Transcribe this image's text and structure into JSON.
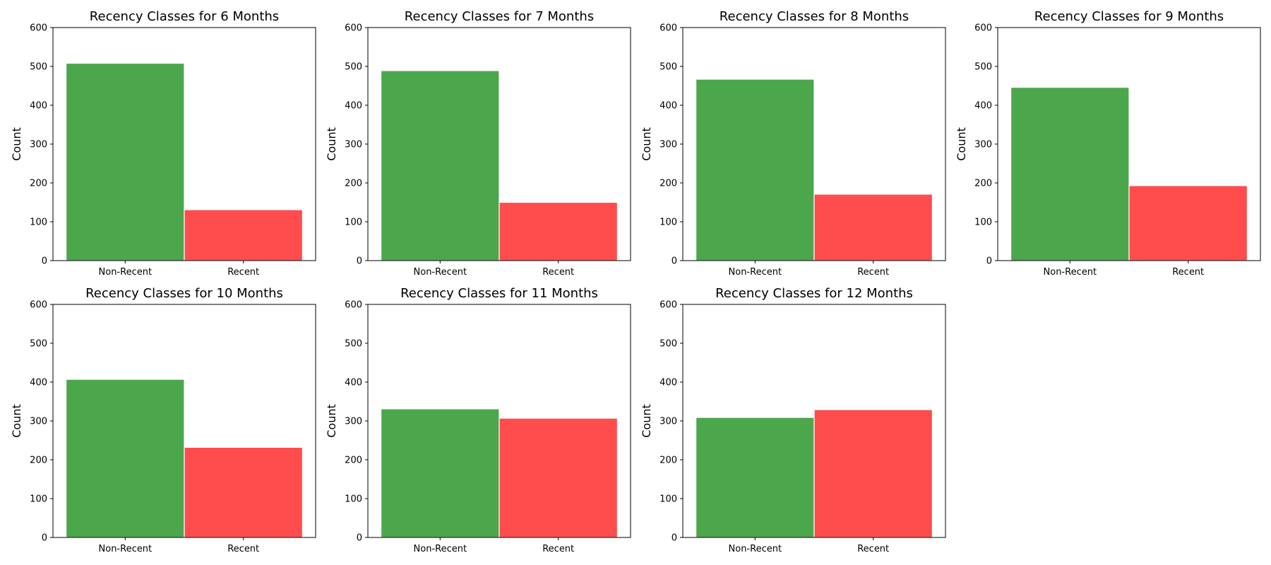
{
  "chart_data": [
    {
      "type": "bar",
      "title": "Recency Classes for 6 Months",
      "categories": [
        "Non-Recent",
        "Recent"
      ],
      "values": [
        508,
        131
      ],
      "colors": [
        "#4ca64c",
        "#ff4c4c"
      ],
      "xlabel": "",
      "ylabel": "Count",
      "ylim": [
        0,
        600
      ],
      "yticks": [
        "0",
        "100",
        "200",
        "300",
        "400",
        "500",
        "600"
      ],
      "grid": false
    },
    {
      "type": "bar",
      "title": "Recency Classes for 7 Months",
      "categories": [
        "Non-Recent",
        "Recent"
      ],
      "values": [
        489,
        150
      ],
      "colors": [
        "#4ca64c",
        "#ff4c4c"
      ],
      "xlabel": "",
      "ylabel": "Count",
      "ylim": [
        0,
        600
      ],
      "yticks": [
        "0",
        "100",
        "200",
        "300",
        "400",
        "500",
        "600"
      ],
      "grid": false
    },
    {
      "type": "bar",
      "title": "Recency Classes for 8 Months",
      "categories": [
        "Non-Recent",
        "Recent"
      ],
      "values": [
        467,
        171
      ],
      "colors": [
        "#4ca64c",
        "#ff4c4c"
      ],
      "xlabel": "",
      "ylabel": "Count",
      "ylim": [
        0,
        600
      ],
      "yticks": [
        "0",
        "100",
        "200",
        "300",
        "400",
        "500",
        "600"
      ],
      "grid": false
    },
    {
      "type": "bar",
      "title": "Recency Classes for 9 Months",
      "categories": [
        "Non-Recent",
        "Recent"
      ],
      "values": [
        446,
        193
      ],
      "colors": [
        "#4ca64c",
        "#ff4c4c"
      ],
      "xlabel": "",
      "ylabel": "Count",
      "ylim": [
        0,
        600
      ],
      "yticks": [
        "0",
        "100",
        "200",
        "300",
        "400",
        "500",
        "600"
      ],
      "grid": false
    },
    {
      "type": "bar",
      "title": "Recency Classes for 10 Months",
      "categories": [
        "Non-Recent",
        "Recent"
      ],
      "values": [
        407,
        232
      ],
      "colors": [
        "#4ca64c",
        "#ff4c4c"
      ],
      "xlabel": "",
      "ylabel": "Count",
      "ylim": [
        0,
        600
      ],
      "yticks": [
        "0",
        "100",
        "200",
        "300",
        "400",
        "500",
        "600"
      ],
      "grid": false
    },
    {
      "type": "bar",
      "title": "Recency Classes for 11 Months",
      "categories": [
        "Non-Recent",
        "Recent"
      ],
      "values": [
        331,
        307
      ],
      "colors": [
        "#4ca64c",
        "#ff4c4c"
      ],
      "xlabel": "",
      "ylabel": "Count",
      "ylim": [
        0,
        600
      ],
      "yticks": [
        "0",
        "100",
        "200",
        "300",
        "400",
        "500",
        "600"
      ],
      "grid": false
    },
    {
      "type": "bar",
      "title": "Recency Classes for 12 Months",
      "categories": [
        "Non-Recent",
        "Recent"
      ],
      "values": [
        309,
        329
      ],
      "colors": [
        "#4ca64c",
        "#ff4c4c"
      ],
      "xlabel": "",
      "ylabel": "Count",
      "ylim": [
        0,
        600
      ],
      "yticks": [
        "0",
        "100",
        "200",
        "300",
        "400",
        "500",
        "600"
      ],
      "grid": false
    }
  ]
}
